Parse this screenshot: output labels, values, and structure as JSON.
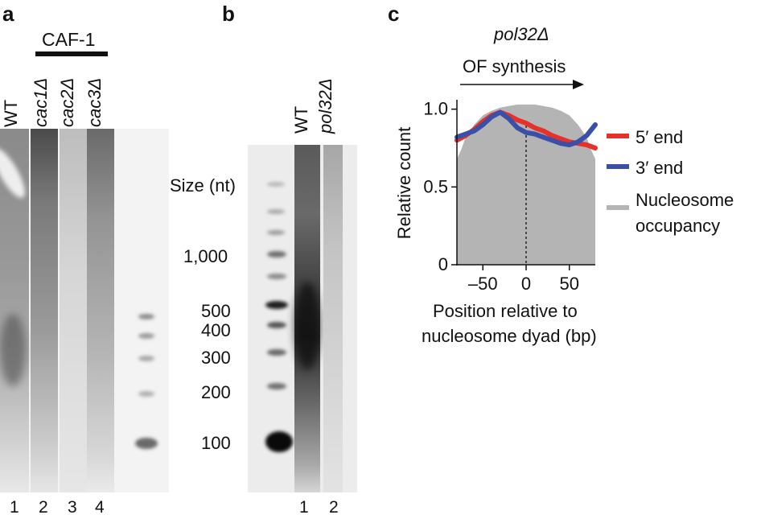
{
  "panels": {
    "a": {
      "letter": "a",
      "group_label": "CAF-1",
      "lanes": [
        {
          "label": "WT",
          "italic": false,
          "number": "1"
        },
        {
          "label": "cac1Δ",
          "italic": true,
          "number": "2"
        },
        {
          "label": "cac2Δ",
          "italic": true,
          "number": "3"
        },
        {
          "label": "cac3Δ",
          "italic": true,
          "number": "4"
        }
      ]
    },
    "b": {
      "letter": "b",
      "size_header": "Size (nt)",
      "size_markers": [
        "1,000",
        "500",
        "400",
        "300",
        "200",
        "100"
      ],
      "lanes": [
        {
          "label": "WT",
          "italic": false,
          "number": "1"
        },
        {
          "label": "pol32Δ",
          "italic": true,
          "number": "2"
        }
      ]
    },
    "c": {
      "letter": "c",
      "title": "pol32Δ",
      "arrow_label": "OF synthesis",
      "legend": [
        {
          "label": "5′ end",
          "color": "#e8302a"
        },
        {
          "label": "3′ end",
          "color": "#3a4fa8"
        },
        {
          "label": "Nucleosome",
          "color": "#b4b4b4"
        },
        {
          "label": "occupancy",
          "color": "#b4b4b4"
        }
      ]
    }
  },
  "chart_data": {
    "type": "line",
    "title": "pol32Δ",
    "xlabel_line1": "Position relative to",
    "xlabel_line2": "nucleosome dyad (bp)",
    "ylabel": "Relative count",
    "xlim": [
      -80,
      80
    ],
    "ylim": [
      0,
      1.05
    ],
    "xticks": [
      -50,
      0,
      50
    ],
    "xtick_labels": [
      "–50",
      "0",
      "50"
    ],
    "yticks": [
      0,
      0.5,
      1.0
    ],
    "ytick_labels": [
      "0",
      "0.5",
      "1.0"
    ],
    "dashed_vline_x": 0,
    "area": {
      "name": "Nucleosome occupancy",
      "x": [
        -80,
        -75,
        -70,
        -60,
        -50,
        -40,
        -30,
        -20,
        -10,
        0,
        10,
        20,
        30,
        40,
        50,
        60,
        70,
        75,
        80
      ],
      "values": [
        0.68,
        0.74,
        0.82,
        0.9,
        0.96,
        0.99,
        1.01,
        1.02,
        1.03,
        1.03,
        1.03,
        1.02,
        1.01,
        0.99,
        0.96,
        0.9,
        0.82,
        0.74,
        0.68
      ]
    },
    "series": [
      {
        "name": "5′ end",
        "color": "#e8302a",
        "x": [
          -80,
          -70,
          -60,
          -50,
          -40,
          -30,
          -20,
          -10,
          0,
          10,
          20,
          30,
          40,
          50,
          60,
          70,
          80
        ],
        "values": [
          0.8,
          0.83,
          0.87,
          0.92,
          0.96,
          0.98,
          0.96,
          0.93,
          0.91,
          0.88,
          0.86,
          0.83,
          0.81,
          0.79,
          0.78,
          0.77,
          0.75
        ]
      },
      {
        "name": "3′ end",
        "color": "#3a4fa8",
        "x": [
          -80,
          -70,
          -60,
          -50,
          -40,
          -30,
          -20,
          -10,
          0,
          10,
          20,
          30,
          40,
          50,
          60,
          70,
          80
        ],
        "values": [
          0.82,
          0.84,
          0.86,
          0.9,
          0.95,
          0.98,
          0.94,
          0.88,
          0.85,
          0.84,
          0.82,
          0.8,
          0.78,
          0.77,
          0.79,
          0.83,
          0.9
        ]
      }
    ]
  }
}
